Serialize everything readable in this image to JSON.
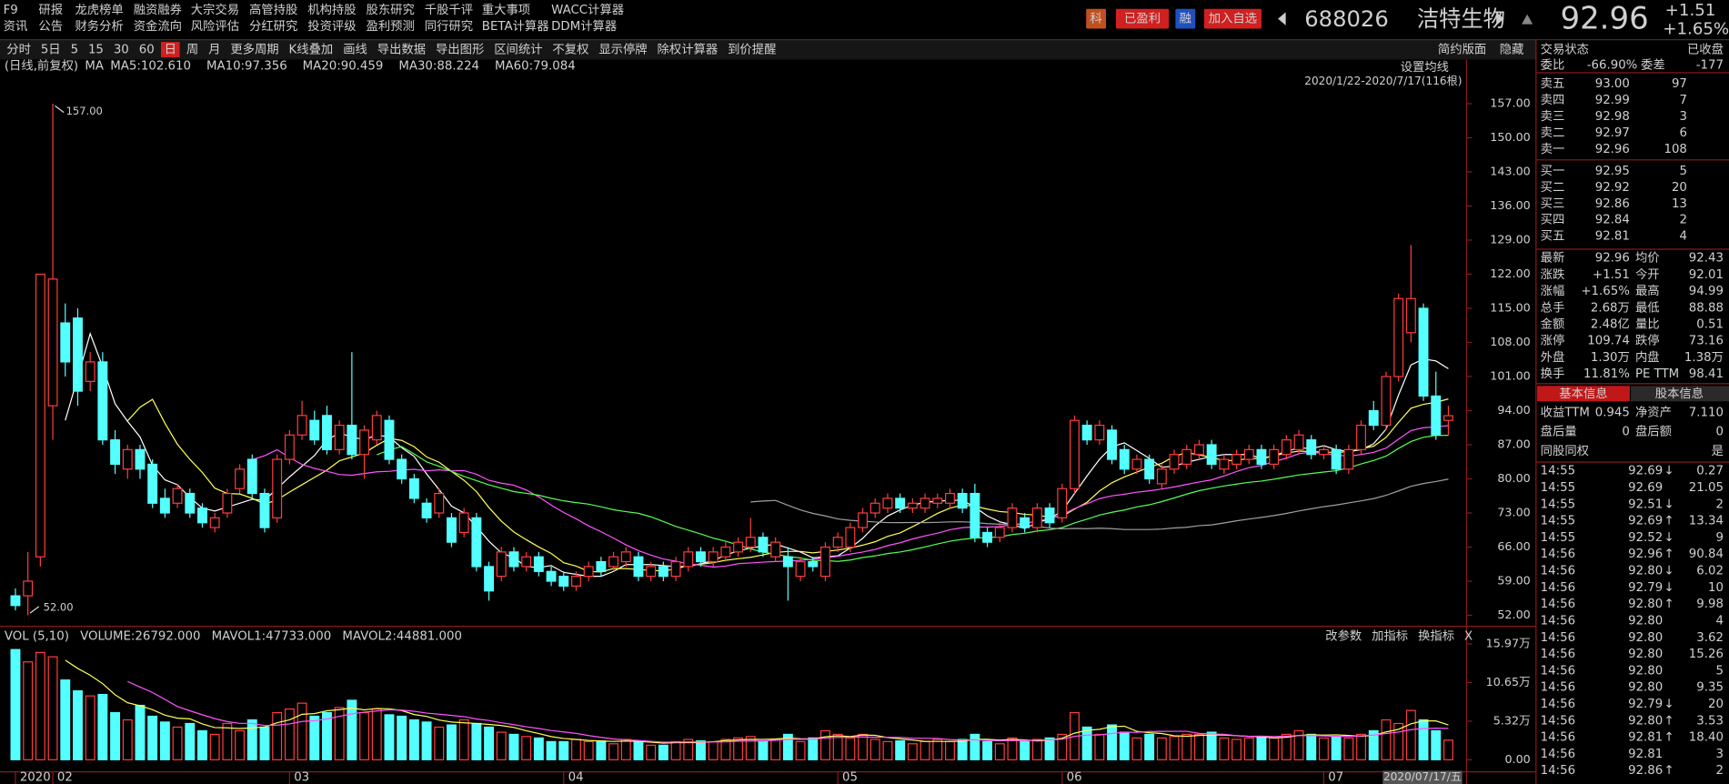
{
  "menu": {
    "rows": [
      [
        "F9",
        "研报",
        "龙虎榜单",
        "融资融券",
        "大宗交易",
        "高管持股",
        "机构持股",
        "股东研究",
        "千股千评",
        "重大事项",
        "WACC计算器"
      ],
      [
        "资讯",
        "公告",
        "财务分析",
        "资金流向",
        "风险评估",
        "分红研究",
        "投资评级",
        "盈利预测",
        "同行研究",
        "BETA计算器",
        "DDM计算器"
      ]
    ]
  },
  "header": {
    "badges": [
      "科",
      "已盈利",
      "融",
      "加入自选"
    ],
    "code": "688026",
    "name": "洁特生物",
    "price": "92.96",
    "change": "+1.51",
    "pct": "+1.65%"
  },
  "toolbar": {
    "items": [
      "分时",
      "5日",
      "5",
      "15",
      "30",
      "60",
      "日",
      "周",
      "月",
      "更多周期",
      "K线叠加",
      "画线",
      "导出数据",
      "导出图形",
      "区间统计",
      "不复权",
      "显示停牌",
      "除权计算器",
      "到价提醒"
    ],
    "active": "日",
    "right": [
      "简约版面",
      "隐藏"
    ]
  },
  "kline": {
    "legend": [
      "(日线,前复权)",
      "MA",
      "MA5:102.610",
      "MA10:97.356",
      "MA20:90.459",
      "MA30:88.224",
      "MA60:79.084"
    ],
    "settings": "设置均线",
    "range": "2020/1/22-2020/7/17(116根)",
    "high_label": "157.00",
    "low_label": "52.00",
    "ylim": [
      52,
      157
    ],
    "yticks": [
      {
        "value": 157,
        "label": "157.00"
      },
      {
        "value": 150,
        "label": "150.00"
      },
      {
        "value": 143,
        "label": "143.00"
      },
      {
        "value": 136,
        "label": "136.00"
      },
      {
        "value": 129,
        "label": "129.00"
      },
      {
        "value": 122,
        "label": "122.00"
      },
      {
        "value": 115,
        "label": "115.00"
      },
      {
        "value": 108,
        "label": "108.00"
      },
      {
        "value": 101,
        "label": "101.00"
      },
      {
        "value": 94,
        "label": "94.00"
      },
      {
        "value": 87,
        "label": "87.00"
      },
      {
        "value": 80,
        "label": "80.00"
      },
      {
        "value": 73,
        "label": "73.00"
      },
      {
        "value": 66,
        "label": "66.00"
      },
      {
        "value": 59,
        "label": "59.00"
      },
      {
        "value": 52,
        "label": "52.00"
      }
    ],
    "up_color": "#ff3c3c",
    "down_color": "#54ffff",
    "candles": [
      [
        56,
        57.5,
        53,
        54
      ],
      [
        56,
        65,
        52,
        59
      ],
      [
        64,
        122,
        62,
        122
      ],
      [
        95,
        157,
        88,
        121
      ],
      [
        112,
        116,
        101,
        104
      ],
      [
        113,
        115,
        95,
        98
      ],
      [
        100,
        106,
        98,
        104
      ],
      [
        104,
        106,
        87,
        88
      ],
      [
        88,
        90,
        81,
        83
      ],
      [
        82,
        87,
        80,
        86
      ],
      [
        86,
        87,
        80,
        82
      ],
      [
        83,
        84,
        74,
        75
      ],
      [
        76,
        78,
        72,
        73
      ],
      [
        75,
        79,
        74,
        78
      ],
      [
        77,
        78,
        72,
        73
      ],
      [
        74,
        75,
        70,
        71
      ],
      [
        70,
        73,
        69,
        72
      ],
      [
        73,
        78,
        72,
        77
      ],
      [
        78,
        83,
        77,
        82
      ],
      [
        84,
        85,
        76,
        77
      ],
      [
        77,
        78,
        69,
        70
      ],
      [
        72,
        85,
        71,
        84
      ],
      [
        84,
        90,
        83,
        89
      ],
      [
        89,
        96,
        88,
        93
      ],
      [
        92,
        94,
        87,
        88
      ],
      [
        93,
        95,
        85,
        86
      ],
      [
        86,
        92,
        85,
        91
      ],
      [
        91,
        106,
        84,
        85
      ],
      [
        85,
        91,
        80,
        90
      ],
      [
        88,
        94,
        87,
        93
      ],
      [
        92,
        93,
        83,
        84
      ],
      [
        84,
        85,
        79,
        80
      ],
      [
        80,
        81,
        75,
        76
      ],
      [
        75,
        76,
        71,
        72
      ],
      [
        73,
        78,
        72,
        77
      ],
      [
        72,
        73,
        66,
        67
      ],
      [
        69,
        74,
        68,
        73
      ],
      [
        72,
        73,
        61,
        62
      ],
      [
        62,
        63,
        55,
        57
      ],
      [
        60,
        66,
        59,
        65
      ],
      [
        65,
        66,
        61,
        62
      ],
      [
        62,
        65,
        61,
        64
      ],
      [
        64,
        65,
        60,
        61
      ],
      [
        61,
        62,
        58,
        59
      ],
      [
        60,
        61,
        57,
        58
      ],
      [
        58,
        61,
        57,
        60
      ],
      [
        60,
        63,
        59,
        62
      ],
      [
        63,
        64,
        60,
        61
      ],
      [
        62,
        65,
        61,
        64
      ],
      [
        63,
        66,
        62,
        65
      ],
      [
        64,
        65,
        59,
        60
      ],
      [
        60,
        63,
        59,
        62
      ],
      [
        62,
        63,
        59,
        60
      ],
      [
        60,
        64,
        59,
        63
      ],
      [
        62,
        66,
        61,
        65
      ],
      [
        65,
        66,
        62,
        63
      ],
      [
        63,
        66,
        62,
        65
      ],
      [
        64,
        67,
        63,
        66
      ],
      [
        65,
        68,
        64,
        67
      ],
      [
        66,
        72,
        65,
        68
      ],
      [
        68,
        69,
        64,
        65
      ],
      [
        64,
        68,
        63,
        67
      ],
      [
        64,
        66,
        55,
        62
      ],
      [
        60,
        64,
        59,
        63
      ],
      [
        63,
        64,
        61,
        62
      ],
      [
        60,
        67,
        59,
        66
      ],
      [
        66,
        69,
        65,
        68
      ],
      [
        66,
        71,
        65,
        70
      ],
      [
        70,
        74,
        69,
        73
      ],
      [
        73,
        76,
        72,
        75
      ],
      [
        74,
        77,
        73,
        76
      ],
      [
        76,
        77,
        73,
        74
      ],
      [
        74,
        76,
        73,
        75
      ],
      [
        74,
        77,
        73,
        76
      ],
      [
        75,
        77,
        74,
        76
      ],
      [
        75,
        78,
        74,
        77
      ],
      [
        77,
        78,
        73,
        74
      ],
      [
        77,
        79,
        67,
        68
      ],
      [
        69,
        70,
        66,
        67
      ],
      [
        68,
        71,
        67,
        70
      ],
      [
        70,
        75,
        69,
        74
      ],
      [
        72,
        73,
        69,
        70
      ],
      [
        70,
        75,
        69,
        74
      ],
      [
        74,
        75,
        70,
        71
      ],
      [
        72,
        79,
        71,
        78
      ],
      [
        78,
        93,
        77,
        92
      ],
      [
        91,
        92,
        87,
        88
      ],
      [
        88,
        92,
        87,
        91
      ],
      [
        90,
        91,
        83,
        84
      ],
      [
        86,
        87,
        81,
        82
      ],
      [
        82,
        85,
        81,
        84
      ],
      [
        84,
        85,
        79,
        80
      ],
      [
        79,
        83,
        78,
        82
      ],
      [
        82,
        86,
        81,
        85
      ],
      [
        83,
        87,
        82,
        86
      ],
      [
        85,
        88,
        84,
        87
      ],
      [
        87,
        88,
        82,
        83
      ],
      [
        82,
        85,
        81,
        84
      ],
      [
        83,
        86,
        82,
        85
      ],
      [
        84,
        87,
        83,
        86
      ],
      [
        86,
        87,
        82,
        83
      ],
      [
        83,
        87,
        82,
        86
      ],
      [
        85,
        89,
        84,
        88
      ],
      [
        86,
        90,
        85,
        89
      ],
      [
        88,
        89,
        84,
        85
      ],
      [
        85,
        87,
        84,
        86
      ],
      [
        86,
        87,
        81,
        82
      ],
      [
        82,
        87,
        81,
        86
      ],
      [
        86,
        92,
        85,
        91
      ],
      [
        94,
        96,
        90,
        91
      ],
      [
        91,
        102,
        90,
        101
      ],
      [
        101,
        118,
        100,
        117
      ],
      [
        110,
        128,
        108,
        117
      ],
      [
        115,
        116,
        96,
        97
      ],
      [
        97,
        102,
        88,
        89
      ],
      [
        92.01,
        94.99,
        88.88,
        92.96
      ]
    ],
    "ma_colors": [
      "#ffffff",
      "#ffff54",
      "#ff54ff",
      "#54ff54",
      "#a0a0a0"
    ],
    "date_labels": [
      {
        "index": 0,
        "label": "2020"
      },
      {
        "index": 3,
        "label": "02"
      },
      {
        "index": 22,
        "label": "03"
      },
      {
        "index": 44,
        "label": "04"
      },
      {
        "index": 66,
        "label": "05"
      },
      {
        "index": 84,
        "label": "06"
      },
      {
        "index": 105,
        "label": "07"
      }
    ],
    "last_date": "2020/07/17/五"
  },
  "volume": {
    "legend": [
      "VOL (5,10)",
      "VOLUME:26792.000",
      "MAVOL1:47733.000",
      "MAVOL2:44881.000"
    ],
    "buttons": [
      "改参数",
      "加指标",
      "换指标",
      "X"
    ],
    "ylim": [
      0,
      15.97
    ],
    "yticks": [
      {
        "value": 15.97,
        "label": "15.97万"
      },
      {
        "value": 10.65,
        "label": "10.65万"
      },
      {
        "value": 5.32,
        "label": "5.32万"
      },
      {
        "value": 0,
        "label": "0.00"
      }
    ],
    "values": [
      15.2,
      13.5,
      14.8,
      14.2,
      11.0,
      9.5,
      8.8,
      9.0,
      6.5,
      5.5,
      7.5,
      6.0,
      5.2,
      4.5,
      5.0,
      4.0,
      3.5,
      5.0,
      4.0,
      5.5,
      4.5,
      6.5,
      7.0,
      7.8,
      6.0,
      6.5,
      7.2,
      8.2,
      6.5,
      7.0,
      6.2,
      6.0,
      5.5,
      5.2,
      4.5,
      4.8,
      5.5,
      5.0,
      4.5,
      3.8,
      3.5,
      3.2,
      3.0,
      2.5,
      2.5,
      2.8,
      2.5,
      2.6,
      2.2,
      2.8,
      2.5,
      2.0,
      2.0,
      2.5,
      2.8,
      2.6,
      2.5,
      2.8,
      3.0,
      3.2,
      2.5,
      2.8,
      3.5,
      2.5,
      3.0,
      4.0,
      3.5,
      3.0,
      3.5,
      2.8,
      2.5,
      2.6,
      2.2,
      2.5,
      2.8,
      2.5,
      2.8,
      3.5,
      2.5,
      2.2,
      3.0,
      2.5,
      2.8,
      3.0,
      3.5,
      6.5,
      4.5,
      3.5,
      4.8,
      3.8,
      3.0,
      3.5,
      3.0,
      3.2,
      3.5,
      3.5,
      3.8,
      3.0,
      2.8,
      3.0,
      3.2,
      3.0,
      3.5,
      4.0,
      3.5,
      3.0,
      3.2,
      3.0,
      3.5,
      4.0,
      5.5,
      5.0,
      6.8,
      5.5,
      4.0,
      2.7
    ]
  },
  "panel": {
    "status": [
      "交易状态",
      "已收盘"
    ],
    "ratio": [
      "委比",
      "-66.90%",
      "委差",
      "-177"
    ],
    "asks": [
      [
        "卖五",
        "93.00",
        "97"
      ],
      [
        "卖四",
        "92.99",
        "7"
      ],
      [
        "卖三",
        "92.98",
        "3"
      ],
      [
        "卖二",
        "92.97",
        "6"
      ],
      [
        "卖一",
        "92.96",
        "108"
      ]
    ],
    "bids": [
      [
        "买一",
        "92.95",
        "5"
      ],
      [
        "买二",
        "92.92",
        "20"
      ],
      [
        "买三",
        "92.86",
        "13"
      ],
      [
        "买四",
        "92.84",
        "2"
      ],
      [
        "买五",
        "92.81",
        "4"
      ]
    ],
    "stats": [
      [
        "最新",
        "92.96",
        "均价",
        "92.43"
      ],
      [
        "涨跌",
        "+1.51",
        "今开",
        "92.01"
      ],
      [
        "涨幅",
        "+1.65%",
        "最高",
        "94.99"
      ],
      [
        "总手",
        "2.68万",
        "最低",
        "88.88"
      ],
      [
        "金额",
        "2.48亿",
        "量比",
        "0.51"
      ],
      [
        "涨停",
        "109.74",
        "跌停",
        "73.16"
      ],
      [
        "外盘",
        "1.30万",
        "内盘",
        "1.38万"
      ],
      [
        "换手",
        "11.81%",
        "PE TTM",
        "98.41"
      ]
    ],
    "stat_colors": [
      [
        "#ff3c3c",
        "#ff3c3c"
      ],
      [
        "#ff3c3c",
        "#ff3c3c"
      ],
      [
        "#ff3c3c",
        "#ff3c3c"
      ],
      [
        "#e0e0e0",
        "#54ff54"
      ],
      [
        "#54ffff",
        "#e0e0e0"
      ],
      [
        "#ff3c3c",
        "#54ff54"
      ],
      [
        "#ff3c3c",
        "#54ff54"
      ],
      [
        "#e0e0e0",
        "#e0e0e0"
      ]
    ],
    "tabs": [
      "基本信息",
      "股本信息"
    ],
    "info": [
      [
        "收益TTM",
        "0.945",
        "净资产",
        "7.110"
      ],
      [
        "盘后量",
        "0",
        "盘后额",
        "0"
      ],
      [
        "同股同权",
        "",
        "",
        "是"
      ]
    ],
    "trades": [
      [
        "14:55",
        "92.69",
        "↓",
        "0.27",
        "#54ff54"
      ],
      [
        "14:55",
        "92.69",
        "",
        "21.05",
        "#ff3c3c"
      ],
      [
        "14:55",
        "92.51",
        "↓",
        "2",
        "#54ff54"
      ],
      [
        "14:55",
        "92.69",
        "↑",
        "13.34",
        "#ff3c3c"
      ],
      [
        "14:55",
        "92.52",
        "↓",
        "9",
        "#54ff54"
      ],
      [
        "14:56",
        "92.96",
        "↑",
        "90.84",
        "#ff3c3c"
      ],
      [
        "14:56",
        "92.80",
        "↓",
        "6.02",
        "#54ff54"
      ],
      [
        "14:56",
        "92.79",
        "↓",
        "10",
        "#54ff54"
      ],
      [
        "14:56",
        "92.80",
        "↑",
        "9.98",
        "#ff3c3c"
      ],
      [
        "14:56",
        "92.80",
        "",
        "4",
        "#54ff54"
      ],
      [
        "14:56",
        "92.80",
        "",
        "3.62",
        "#54ff54"
      ],
      [
        "14:56",
        "92.80",
        "",
        "15.26",
        "#54ff54"
      ],
      [
        "14:56",
        "92.80",
        "",
        "5",
        "#ff3c3c"
      ],
      [
        "14:56",
        "92.80",
        "",
        "9.35",
        "#ff3c3c"
      ],
      [
        "14:56",
        "92.79",
        "↓",
        "20",
        "#54ff54"
      ],
      [
        "14:56",
        "92.80",
        "↑",
        "3.53",
        "#54ff54"
      ],
      [
        "14:56",
        "92.81",
        "↑",
        "18.40",
        "#ff3c3c"
      ],
      [
        "14:56",
        "92.81",
        "",
        "3",
        "#ff3c3c"
      ],
      [
        "14:56",
        "92.86",
        "↑",
        "2",
        "#ff3c3c"
      ]
    ]
  }
}
